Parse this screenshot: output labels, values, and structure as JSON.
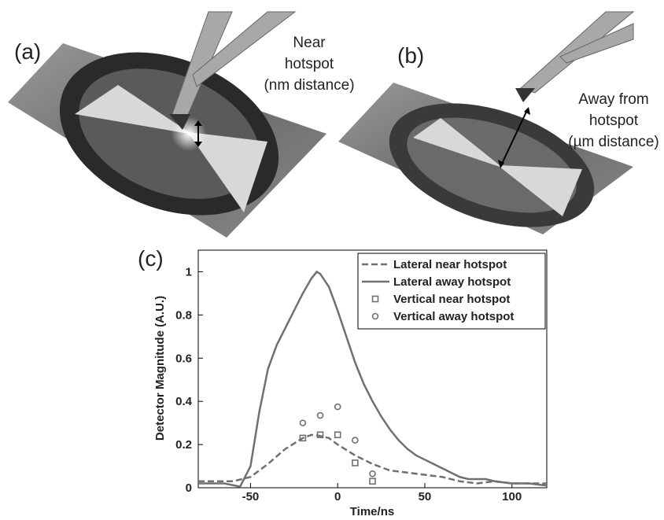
{
  "panels": {
    "a": {
      "label": "(a)",
      "annotation": [
        "Near",
        "hotspot",
        "(nm distance)"
      ]
    },
    "b": {
      "label": "(b)",
      "annotation": [
        "Away from",
        "hotspot",
        "(µm distance)"
      ]
    },
    "c": {
      "label": "(c)"
    }
  },
  "chart_data": {
    "type": "line",
    "x_label": "Time/ns",
    "y_label": "Detector Magnitude (A.U.)",
    "xlim": [
      -80,
      120
    ],
    "ylim": [
      0,
      1.1
    ],
    "xticks": [
      -50,
      0,
      50,
      100
    ],
    "yticks": [
      0,
      0.2,
      0.4,
      0.6,
      0.8,
      1
    ],
    "legend": "upper right",
    "series": [
      {
        "name": "Lateral near hotspot",
        "color": "#707070",
        "style": "dashed",
        "x": [
          -80,
          -60,
          -50,
          -40,
          -30,
          -20,
          -15,
          -10,
          -5,
          0,
          10,
          20,
          30,
          40,
          50,
          60,
          70,
          80,
          90,
          100,
          120
        ],
        "values": [
          0.03,
          0.03,
          0.05,
          0.11,
          0.18,
          0.23,
          0.245,
          0.24,
          0.23,
          0.2,
          0.15,
          0.11,
          0.08,
          0.07,
          0.06,
          0.05,
          0.03,
          0.02,
          0.03,
          0.02,
          0.02
        ]
      },
      {
        "name": "Lateral away hotspot",
        "color": "#707070",
        "style": "solid",
        "x": [
          -80,
          -65,
          -56,
          -50,
          -45,
          -40,
          -35,
          -30,
          -25,
          -20,
          -15,
          -12,
          -10,
          -5,
          0,
          5,
          10,
          15,
          20,
          25,
          30,
          35,
          40,
          45,
          50,
          55,
          60,
          65,
          70,
          75,
          80,
          85,
          90,
          100,
          110,
          120
        ],
        "values": [
          0.02,
          0.02,
          0.005,
          0.1,
          0.35,
          0.55,
          0.66,
          0.74,
          0.82,
          0.9,
          0.97,
          1.0,
          0.99,
          0.93,
          0.82,
          0.7,
          0.58,
          0.48,
          0.4,
          0.33,
          0.27,
          0.22,
          0.18,
          0.15,
          0.13,
          0.11,
          0.09,
          0.07,
          0.05,
          0.04,
          0.04,
          0.04,
          0.03,
          0.02,
          0.02,
          0.01
        ]
      },
      {
        "name": "Vertical near hotspot",
        "color": "#707070",
        "style": "square",
        "x": [
          -20,
          -10,
          0,
          10,
          20
        ],
        "values": [
          0.23,
          0.245,
          0.245,
          0.115,
          0.03
        ]
      },
      {
        "name": "Vertical away hotspot",
        "color": "#707070",
        "style": "circle",
        "x": [
          -20,
          -10,
          0,
          10,
          20
        ],
        "values": [
          0.3,
          0.335,
          0.375,
          0.22,
          0.065
        ]
      }
    ]
  }
}
